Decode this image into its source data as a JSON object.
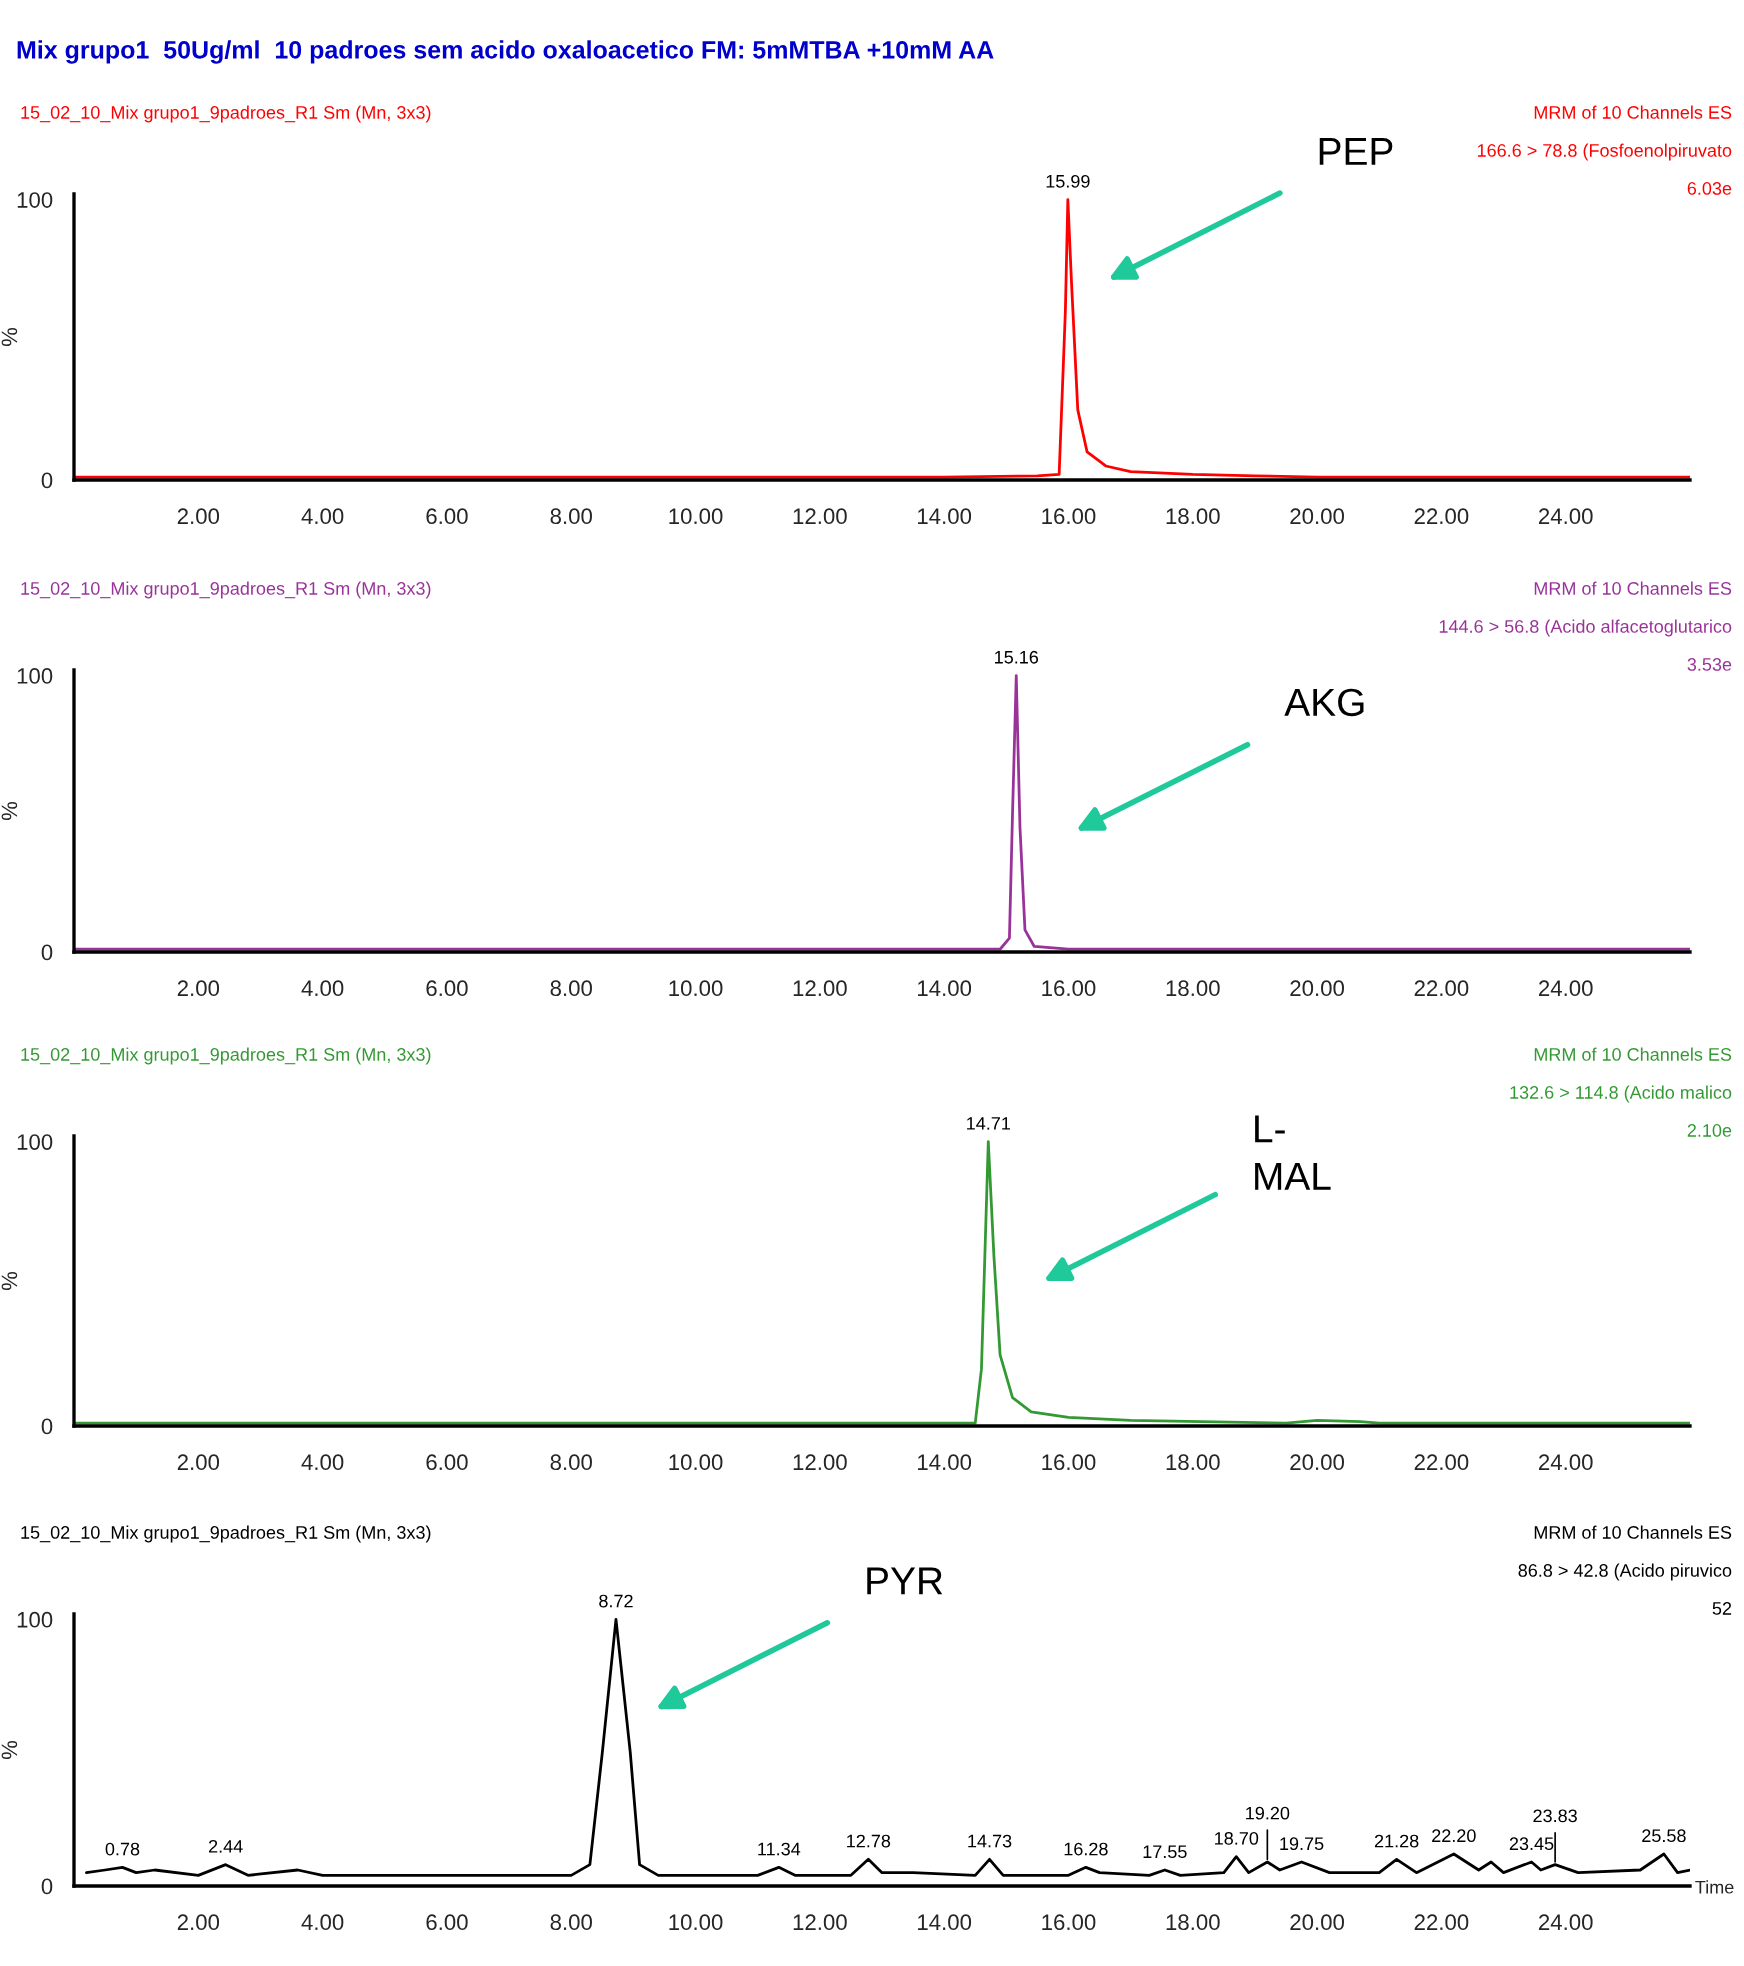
{
  "chart_data": [
    {
      "type": "line",
      "title": "Mix grupo1  50Ug/ml  10 padroes sem acido oxaloacetico FM: 5mMTBA +10mM AA",
      "ylabel": "%",
      "grid": false,
      "x": [
        0,
        14,
        15.5,
        15.85,
        15.95,
        15.99,
        16.05,
        16.15,
        16.3,
        16.6,
        17,
        18,
        19,
        20,
        26
      ],
      "series": [
        {
          "color": "#ff0000",
          "values": [
            1,
            1,
            1.5,
            2,
            60,
            100,
            70,
            25,
            10,
            5,
            3,
            2,
            1.5,
            1,
            1
          ]
        }
      ],
      "xlim": [
        0,
        26
      ],
      "xticks": [
        {
          "value": 2,
          "label": "2.00"
        },
        {
          "value": 4,
          "label": "4.00"
        },
        {
          "value": 6,
          "label": "6.00"
        },
        {
          "value": 8,
          "label": "8.00"
        },
        {
          "value": 10,
          "label": "10.00"
        },
        {
          "value": 12,
          "label": "12.00"
        },
        {
          "value": 14,
          "label": "14.00"
        },
        {
          "value": 16,
          "label": "16.00"
        },
        {
          "value": 18,
          "label": "18.00"
        },
        {
          "value": 20,
          "label": "20.00"
        },
        {
          "value": 22,
          "label": "22.00"
        },
        {
          "value": 24,
          "label": "24.00"
        }
      ],
      "ylim": [
        0,
        102
      ],
      "yticks": [
        0,
        100
      ],
      "annotations": [
        "15_02_10_Mix grupo1_9padroes_R1 Sm (Mn, 3x3)",
        "MRM of 10 Channels ES",
        "166.6 > 78.8 (Fosfoenolpiruvato",
        "6.03e",
        {
          "text": "15.99",
          "x": 15.99,
          "y": 100
        },
        "PEP"
      ]
    },
    {
      "type": "line",
      "ylabel": "%",
      "grid": false,
      "x": [
        0,
        14.9,
        15.05,
        15.1,
        15.16,
        15.22,
        15.3,
        15.45,
        16,
        26
      ],
      "series": [
        {
          "color": "#993399",
          "values": [
            1,
            1,
            5,
            50,
            100,
            45,
            8,
            2,
            1,
            1
          ]
        }
      ],
      "xlim": [
        0,
        26
      ],
      "xticks": [
        {
          "value": 2,
          "label": "2.00"
        },
        {
          "value": 4,
          "label": "4.00"
        },
        {
          "value": 6,
          "label": "6.00"
        },
        {
          "value": 8,
          "label": "8.00"
        },
        {
          "value": 10,
          "label": "10.00"
        },
        {
          "value": 12,
          "label": "12.00"
        },
        {
          "value": 14,
          "label": "14.00"
        },
        {
          "value": 16,
          "label": "16.00"
        },
        {
          "value": 18,
          "label": "18.00"
        },
        {
          "value": 20,
          "label": "20.00"
        },
        {
          "value": 22,
          "label": "22.00"
        },
        {
          "value": 24,
          "label": "24.00"
        }
      ],
      "ylim": [
        0,
        102
      ],
      "yticks": [
        0,
        100
      ],
      "annotations": [
        "15_02_10_Mix grupo1_9padroes_R1 Sm (Mn, 3x3)",
        "MRM of 10 Channels ES",
        "144.6 > 56.8 (Acido alfacetoglutarico",
        "3.53e",
        {
          "text": "15.16",
          "x": 15.16,
          "y": 100
        },
        "AKG"
      ]
    },
    {
      "type": "line",
      "ylabel": "%",
      "grid": false,
      "x": [
        0,
        14.5,
        14.6,
        14.71,
        14.8,
        14.9,
        15.1,
        15.4,
        16,
        17,
        19.5,
        20,
        20.7,
        21,
        26
      ],
      "series": [
        {
          "color": "#339933",
          "values": [
            1,
            1,
            20,
            100,
            60,
            25,
            10,
            5,
            3,
            2,
            1,
            2,
            1.5,
            1,
            1
          ]
        }
      ],
      "xlim": [
        0,
        26
      ],
      "xticks": [
        {
          "value": 2,
          "label": "2.00"
        },
        {
          "value": 4,
          "label": "4.00"
        },
        {
          "value": 6,
          "label": "6.00"
        },
        {
          "value": 8,
          "label": "8.00"
        },
        {
          "value": 10,
          "label": "10.00"
        },
        {
          "value": 12,
          "label": "12.00"
        },
        {
          "value": 14,
          "label": "14.00"
        },
        {
          "value": 16,
          "label": "16.00"
        },
        {
          "value": 18,
          "label": "18.00"
        },
        {
          "value": 20,
          "label": "20.00"
        },
        {
          "value": 22,
          "label": "22.00"
        },
        {
          "value": 24,
          "label": "24.00"
        }
      ],
      "ylim": [
        0,
        102
      ],
      "yticks": [
        0,
        100
      ],
      "annotations": [
        "15_02_10_Mix grupo1_9padroes_R1 Sm (Mn, 3x3)",
        "MRM of 10 Channels ES",
        "132.6 > 114.8 (Acido malico",
        "2.10e",
        {
          "text": "14.71",
          "x": 14.71,
          "y": 100
        },
        "L-\nMAL"
      ]
    },
    {
      "type": "line",
      "ylabel": "%",
      "xlabel": "Time",
      "grid": false,
      "x": [
        0.2,
        0.5,
        0.78,
        1.0,
        1.3,
        2.0,
        2.44,
        2.8,
        3.6,
        4.0,
        6.0,
        8.0,
        8.3,
        8.5,
        8.72,
        8.95,
        9.1,
        9.4,
        11.0,
        11.34,
        11.6,
        12.5,
        12.78,
        13.0,
        13.5,
        14.5,
        14.73,
        14.95,
        16.0,
        16.28,
        16.5,
        17.3,
        17.55,
        17.8,
        18.5,
        18.7,
        18.9,
        19.2,
        19.4,
        19.75,
        20.2,
        21.0,
        21.28,
        21.6,
        22.2,
        22.6,
        22.8,
        23.0,
        23.45,
        23.6,
        23.83,
        24.2,
        25.2,
        25.58,
        25.8,
        26
      ],
      "series": [
        {
          "color": "#000000",
          "values": [
            5,
            6,
            7,
            5,
            6,
            4,
            8,
            4,
            6,
            4,
            4,
            4,
            8,
            50,
            100,
            50,
            8,
            4,
            4,
            7,
            4,
            4,
            10,
            5,
            5,
            4,
            10,
            4,
            4,
            7,
            5,
            4,
            6,
            4,
            5,
            11,
            5,
            9,
            6,
            9,
            5,
            5,
            10,
            5,
            12,
            6,
            9,
            5,
            9,
            6,
            8,
            5,
            6,
            12,
            5,
            6
          ]
        }
      ],
      "xlim": [
        0,
        26
      ],
      "xticks": [
        {
          "value": 2,
          "label": "2.00"
        },
        {
          "value": 4,
          "label": "4.00"
        },
        {
          "value": 6,
          "label": "6.00"
        },
        {
          "value": 8,
          "label": "8.00"
        },
        {
          "value": 10,
          "label": "10.00"
        },
        {
          "value": 12,
          "label": "12.00"
        },
        {
          "value": 14,
          "label": "14.00"
        },
        {
          "value": 16,
          "label": "16.00"
        },
        {
          "value": 18,
          "label": "18.00"
        },
        {
          "value": 20,
          "label": "20.00"
        },
        {
          "value": 22,
          "label": "22.00"
        },
        {
          "value": 24,
          "label": "24.00"
        }
      ],
      "ylim": [
        0,
        102
      ],
      "yticks": [
        0,
        100
      ],
      "annotations": [
        "15_02_10_Mix grupo1_9padroes_R1 Sm (Mn, 3x3)",
        "MRM of 10 Channels ES",
        "86.8 > 42.8 (Acido piruvico",
        "52",
        {
          "text": "0.78",
          "x": 0.78,
          "y": 7
        },
        {
          "text": "2.44",
          "x": 2.44,
          "y": 8
        },
        {
          "text": "8.72",
          "x": 8.72,
          "y": 100
        },
        {
          "text": "11.34",
          "x": 11.34,
          "y": 7
        },
        {
          "text": "12.78",
          "x": 12.78,
          "y": 10
        },
        {
          "text": "14.73",
          "x": 14.73,
          "y": 10
        },
        {
          "text": "16.28",
          "x": 16.28,
          "y": 7
        },
        {
          "text": "17.55",
          "x": 17.55,
          "y": 6
        },
        {
          "text": "18.70",
          "x": 18.7,
          "y": 11
        },
        {
          "text": "19.20",
          "x": 19.2,
          "y": 9
        },
        {
          "text": "19.75",
          "x": 19.75,
          "y": 9
        },
        {
          "text": "21.28",
          "x": 21.28,
          "y": 10
        },
        {
          "text": "22.20",
          "x": 22.2,
          "y": 12
        },
        {
          "text": "23.45",
          "x": 23.45,
          "y": 9
        },
        {
          "text": "23.83",
          "x": 23.83,
          "y": 8
        },
        {
          "text": "25.58",
          "x": 25.58,
          "y": 12
        },
        "PYR"
      ]
    }
  ]
}
